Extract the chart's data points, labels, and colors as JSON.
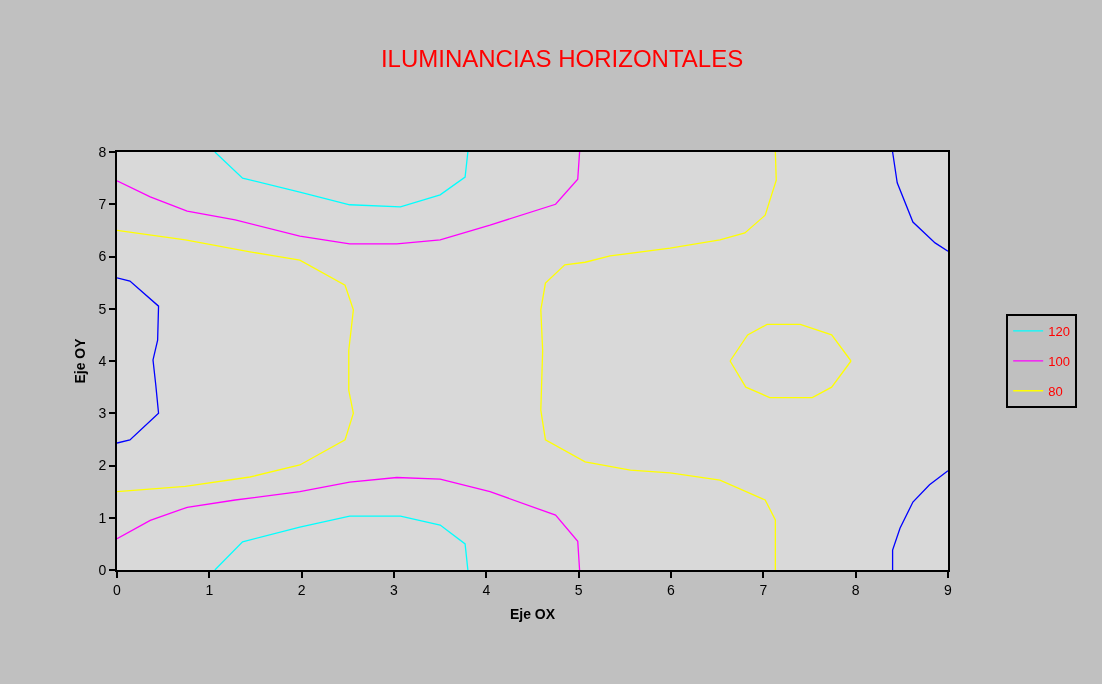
{
  "chart_data": {
    "type": "line",
    "title": "ILUMINANCIAS HORIZONTALES",
    "xlabel": "Eje OX",
    "ylabel": "Eje OY",
    "xlim": [
      0,
      9
    ],
    "xticks": [
      0,
      1,
      2,
      3,
      4,
      5,
      6,
      7,
      8,
      9
    ],
    "ylim": [
      0,
      8
    ],
    "yticks": [
      0,
      1,
      2,
      3,
      4,
      5,
      6,
      7,
      8
    ],
    "grid": false,
    "legend": "right",
    "marker": "none",
    "line_style": "solid",
    "series": [
      {
        "name": "120",
        "color": "#00ffff",
        "x": [
          1.06,
          1.36,
          1.98,
          2.52,
          3.07,
          3.5,
          3.77,
          3.8
        ],
        "values": [
          8,
          7.5,
          7.23,
          6.99,
          6.95,
          7.18,
          7.52,
          8
        ]
      },
      {
        "color": "#00ffff",
        "x": [
          1.06,
          1.36,
          1.98,
          2.52,
          3.07,
          3.5,
          3.77,
          3.8
        ],
        "values": [
          0,
          0.54,
          0.82,
          1.03,
          1.03,
          0.86,
          0.5,
          0
        ]
      },
      {
        "name": "100",
        "color": "#ff00ff",
        "x": [
          0,
          0.36,
          0.76,
          1.28,
          1.98,
          2.52,
          3.03,
          3.5,
          4.04,
          4.75,
          4.99,
          5.01
        ],
        "values": [
          7.45,
          7.14,
          6.87,
          6.7,
          6.39,
          6.24,
          6.24,
          6.32,
          6.6,
          7.0,
          7.48,
          8
        ]
      },
      {
        "color": "#ff00ff",
        "x": [
          0,
          0.36,
          0.76,
          1.28,
          1.98,
          2.52,
          3.03,
          3.5,
          4.04,
          4.75,
          4.99,
          5.01
        ],
        "values": [
          0.6,
          0.95,
          1.2,
          1.34,
          1.5,
          1.68,
          1.77,
          1.74,
          1.5,
          1.05,
          0.55,
          0
        ]
      },
      {
        "name": "80",
        "color": "#ffff00",
        "x": [
          0,
          0.74,
          1.44,
          1.98,
          2.47,
          2.56,
          2.51,
          2.51,
          2.56,
          2.47,
          1.98,
          1.44,
          0.74,
          0
        ],
        "values": [
          6.5,
          6.32,
          6.09,
          5.93,
          5.45,
          4.98,
          4.2,
          3.44,
          3.0,
          2.49,
          2.01,
          1.78,
          1.6,
          1.5
        ]
      },
      {
        "color": "#ffff00",
        "x": [
          7.13,
          7.14,
          7.02,
          6.8,
          6.53,
          5.99,
          5.34,
          5.07,
          4.85,
          4.64,
          4.59,
          4.61,
          4.59,
          4.64,
          5.07,
          5.56,
          5.99,
          6.53,
          7.02,
          7.13,
          7.13
        ],
        "values": [
          8,
          7.46,
          6.79,
          6.45,
          6.32,
          6.16,
          6.01,
          5.89,
          5.84,
          5.49,
          4.98,
          4.2,
          3.06,
          2.49,
          2.07,
          1.91,
          1.86,
          1.72,
          1.34,
          0.96,
          0
        ]
      },
      {
        "color": "#ffff00",
        "x": [
          6.64,
          6.83,
          7.04,
          7.4,
          7.74,
          7.95
        ],
        "values": [
          4.0,
          4.5,
          4.7,
          4.7,
          4.5,
          4.0
        ]
      },
      {
        "color": "#ffff00",
        "x": [
          6.64,
          6.81,
          7.07,
          7.53,
          7.74,
          7.95
        ],
        "values": [
          4.0,
          3.5,
          3.3,
          3.3,
          3.5,
          4.0
        ]
      },
      {
        "color": "#0000ff",
        "x": [
          0,
          0.14,
          0.45,
          0.44,
          0.39,
          0.42,
          0.45,
          0.14,
          0
        ],
        "values": [
          5.59,
          5.53,
          5.05,
          4.4,
          4.02,
          3.54,
          3.0,
          2.49,
          2.43
        ]
      },
      {
        "color": "#0000ff",
        "x": [
          8.4,
          8.45,
          8.62,
          8.86,
          9
        ],
        "values": [
          8,
          7.41,
          6.66,
          6.26,
          6.1
        ]
      },
      {
        "color": "#0000ff",
        "x": [
          9,
          8.8,
          8.62,
          8.48,
          8.4,
          8.4
        ],
        "values": [
          1.9,
          1.63,
          1.3,
          0.8,
          0.38,
          0
        ]
      }
    ]
  }
}
